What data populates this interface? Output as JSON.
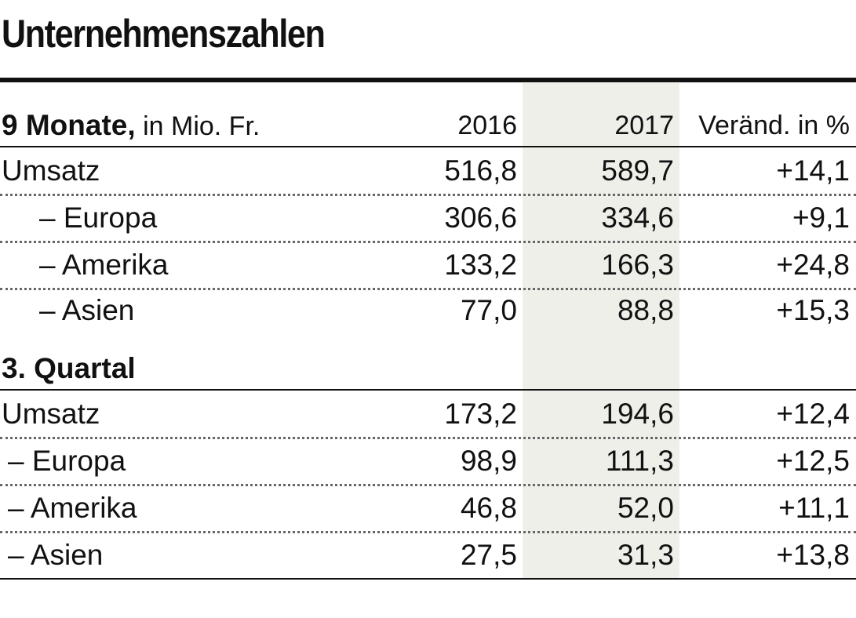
{
  "chart_data": {
    "type": "table",
    "title": "Unternehmenszahlen",
    "columns": [
      "2016",
      "2017",
      "Veränd. in %"
    ],
    "sections": [
      {
        "title_bold": "9 Monate,",
        "title_normal": " in Mio. Fr.",
        "rows": [
          {
            "label": "Umsatz",
            "v2016": "516,8",
            "v2017": "589,7",
            "change": "+14,1"
          },
          {
            "label": "– Europa",
            "v2016": "306,6",
            "v2017": "334,6",
            "change": "+9,1"
          },
          {
            "label": "– Amerika",
            "v2016": "133,2",
            "v2017": "166,3",
            "change": "+24,8"
          },
          {
            "label": "– Asien",
            "v2016": "77,0",
            "v2017": "88,8",
            "change": "+15,3"
          }
        ]
      },
      {
        "title_bold": "3. Quartal",
        "rows": [
          {
            "label": "Umsatz",
            "v2016": "173,2",
            "v2017": "194,6",
            "change": "+12,4"
          },
          {
            "label": "– Europa",
            "v2016": "98,9",
            "v2017": "111,3",
            "change": "+12,5"
          },
          {
            "label": "– Amerika",
            "v2016": "46,8",
            "v2017": "52,0",
            "change": "+11,1"
          },
          {
            "label": "– Asien",
            "v2016": "27,5",
            "v2017": "31,3",
            "change": "+13,8"
          }
        ]
      }
    ],
    "highlight_column": "2017",
    "colors": {
      "text": "#111111",
      "highlight": "#efefea",
      "dots": "#666666"
    }
  }
}
